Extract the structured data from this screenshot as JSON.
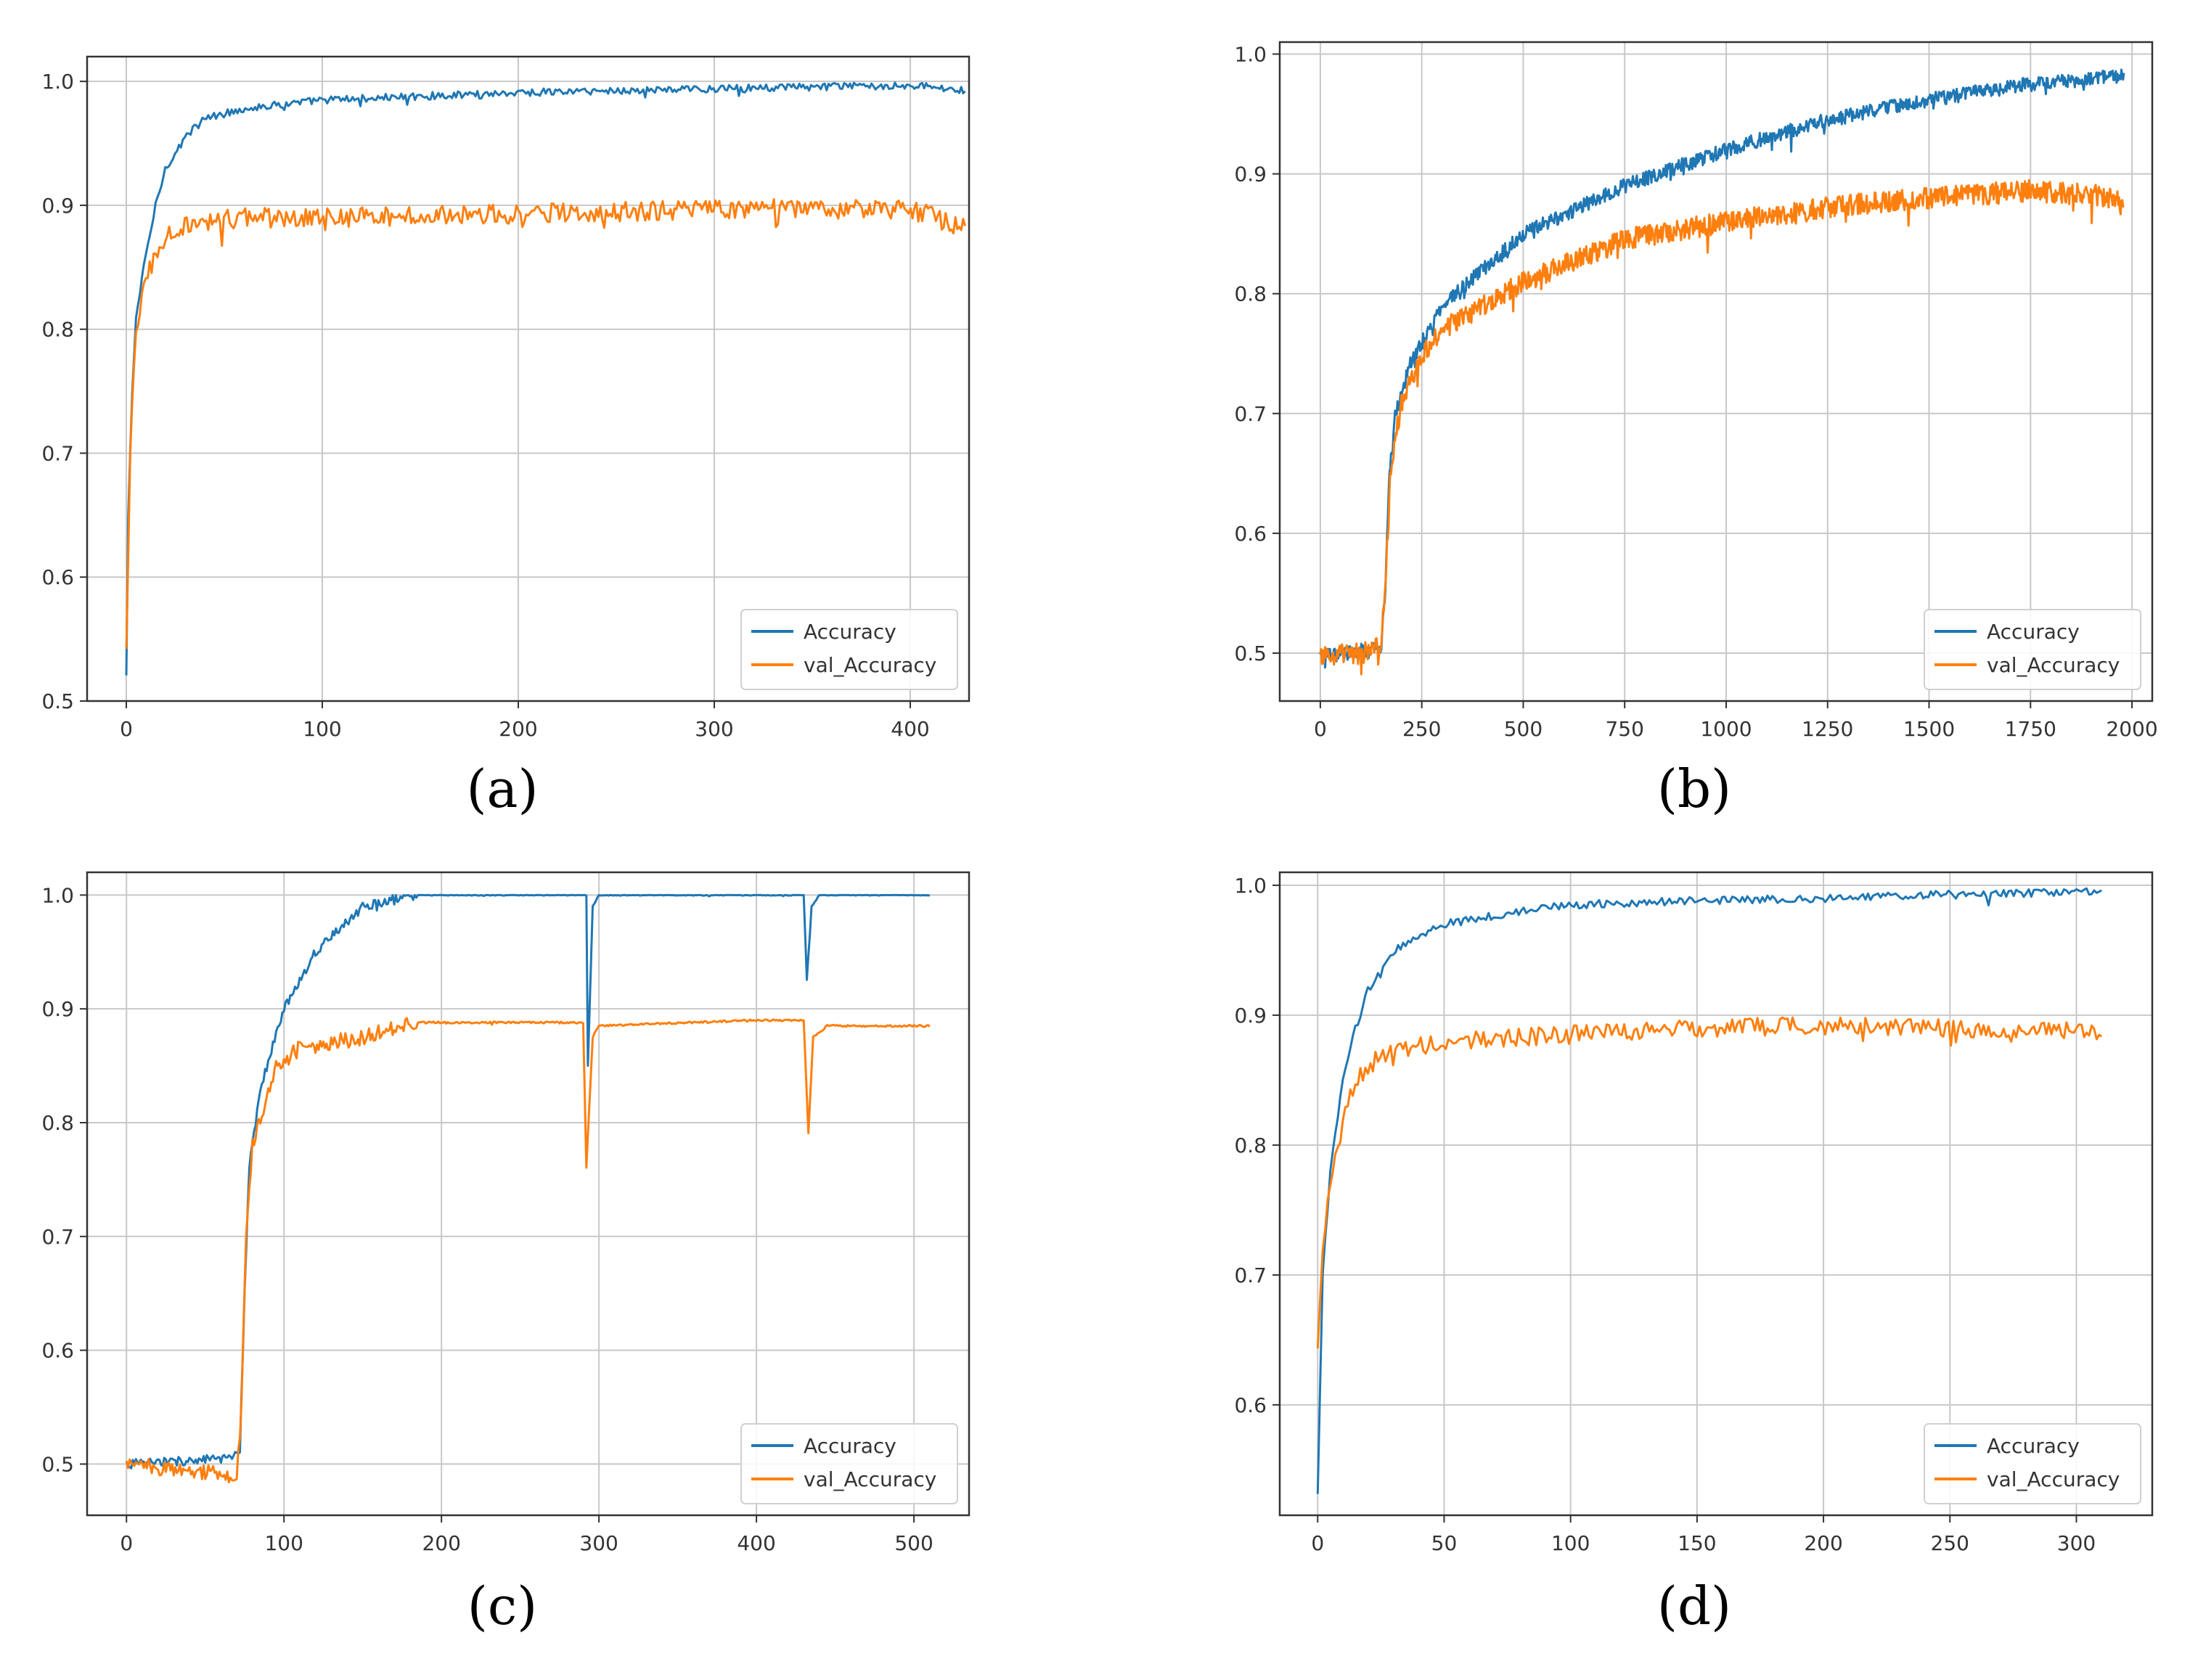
{
  "colors": {
    "accuracy": "#1f77b4",
    "val_accuracy": "#ff7f0e",
    "grid": "#c8c8c8",
    "axis": "#333333"
  },
  "chart_data": [
    {
      "id": "a",
      "caption": "(a)",
      "type": "line",
      "xlim": [
        -20,
        430
      ],
      "ylim": [
        0.5,
        1.02
      ],
      "xticks": [
        0,
        100,
        200,
        300,
        400
      ],
      "xtick_labels": [
        "0",
        "100",
        "200",
        "300",
        "400"
      ],
      "yticks": [
        0.5,
        0.6,
        0.7,
        0.8,
        0.9,
        1.0
      ],
      "ytick_labels": [
        "0.5",
        "0.6",
        "0.7",
        "0.8",
        "0.9",
        "1.0"
      ],
      "grid": true,
      "legend": "lower-right",
      "n_points": 430,
      "series": [
        {
          "name": "Accuracy",
          "color": "#1f77b4",
          "points": [
            [
              0,
              0.52
            ],
            [
              1,
              0.65
            ],
            [
              3,
              0.75
            ],
            [
              5,
              0.81
            ],
            [
              10,
              0.86
            ],
            [
              15,
              0.9
            ],
            [
              20,
              0.93
            ],
            [
              30,
              0.955
            ],
            [
              40,
              0.97
            ],
            [
              60,
              0.978
            ],
            [
              100,
              0.985
            ],
            [
              150,
              0.988
            ],
            [
              200,
              0.991
            ],
            [
              300,
              0.994
            ],
            [
              400,
              0.997
            ],
            [
              428,
              0.993
            ]
          ],
          "noise": 0.003
        },
        {
          "name": "val_Accuracy",
          "color": "#ff7f0e",
          "points": [
            [
              0,
              0.54
            ],
            [
              2,
              0.7
            ],
            [
              5,
              0.8
            ],
            [
              10,
              0.84
            ],
            [
              15,
              0.86
            ],
            [
              20,
              0.875
            ],
            [
              30,
              0.885
            ],
            [
              60,
              0.89
            ],
            [
              100,
              0.89
            ],
            [
              200,
              0.893
            ],
            [
              300,
              0.897
            ],
            [
              400,
              0.897
            ],
            [
              428,
              0.882
            ]
          ],
          "noise": 0.008
        }
      ]
    },
    {
      "id": "b",
      "caption": "(b)",
      "type": "line",
      "xlim": [
        -100,
        2050
      ],
      "ylim": [
        0.46,
        1.01
      ],
      "xticks": [
        0,
        250,
        500,
        750,
        1000,
        1250,
        1500,
        1750,
        2000
      ],
      "xtick_labels": [
        "0",
        "250",
        "500",
        "750",
        "1000",
        "1250",
        "1500",
        "1750",
        "2000"
      ],
      "yticks": [
        0.5,
        0.6,
        0.7,
        0.8,
        0.9,
        1.0
      ],
      "ytick_labels": [
        "0.5",
        "0.6",
        "0.7",
        "0.8",
        "0.9",
        "1.0"
      ],
      "grid": true,
      "legend": "lower-right",
      "n_points": 1000,
      "series": [
        {
          "name": "Accuracy",
          "color": "#1f77b4",
          "points": [
            [
              0,
              0.497
            ],
            [
              100,
              0.502
            ],
            [
              150,
              0.505
            ],
            [
              160,
              0.55
            ],
            [
              170,
              0.65
            ],
            [
              185,
              0.7
            ],
            [
              220,
              0.74
            ],
            [
              300,
              0.79
            ],
            [
              400,
              0.82
            ],
            [
              500,
              0.85
            ],
            [
              750,
              0.89
            ],
            [
              1000,
              0.92
            ],
            [
              1250,
              0.945
            ],
            [
              1500,
              0.962
            ],
            [
              1750,
              0.975
            ],
            [
              1980,
              0.982
            ]
          ],
          "noise": 0.006
        },
        {
          "name": "val_Accuracy",
          "color": "#ff7f0e",
          "points": [
            [
              0,
              0.497
            ],
            [
              100,
              0.5
            ],
            [
              150,
              0.505
            ],
            [
              160,
              0.56
            ],
            [
              175,
              0.66
            ],
            [
              200,
              0.71
            ],
            [
              250,
              0.75
            ],
            [
              300,
              0.77
            ],
            [
              400,
              0.79
            ],
            [
              500,
              0.81
            ],
            [
              750,
              0.845
            ],
            [
              1000,
              0.86
            ],
            [
              1250,
              0.872
            ],
            [
              1500,
              0.88
            ],
            [
              1750,
              0.886
            ],
            [
              1980,
              0.88
            ]
          ],
          "noise": 0.009
        }
      ]
    },
    {
      "id": "c",
      "caption": "(c)",
      "type": "line",
      "xlim": [
        -25,
        535
      ],
      "ylim": [
        0.455,
        1.02
      ],
      "xticks": [
        0,
        100,
        200,
        300,
        400,
        500
      ],
      "xtick_labels": [
        "0",
        "100",
        "200",
        "300",
        "400",
        "500"
      ],
      "yticks": [
        0.5,
        0.6,
        0.7,
        0.8,
        0.9,
        1.0
      ],
      "ytick_labels": [
        "0.5",
        "0.6",
        "0.7",
        "0.8",
        "0.9",
        "1.0"
      ],
      "grid": true,
      "legend": "lower-right",
      "n_points": 510,
      "series": [
        {
          "name": "Accuracy",
          "color": "#1f77b4",
          "points": [
            [
              0,
              0.5
            ],
            [
              65,
              0.505
            ],
            [
              72,
              0.51
            ],
            [
              75,
              0.65
            ],
            [
              78,
              0.76
            ],
            [
              85,
              0.83
            ],
            [
              100,
              0.9
            ],
            [
              120,
              0.95
            ],
            [
              150,
              0.99
            ],
            [
              180,
              1.0
            ],
            [
              292,
              1.0
            ],
            [
              293,
              0.85
            ],
            [
              296,
              0.99
            ],
            [
              300,
              1.0
            ],
            [
              430,
              1.0
            ],
            [
              432,
              0.925
            ],
            [
              435,
              0.99
            ],
            [
              440,
              1.0
            ],
            [
              510,
              1.0
            ]
          ],
          "noise": 0.004,
          "noise_until": 185
        },
        {
          "name": "val_Accuracy",
          "color": "#ff7f0e",
          "points": [
            [
              0,
              0.5
            ],
            [
              70,
              0.49
            ],
            [
              73,
              0.55
            ],
            [
              76,
              0.7
            ],
            [
              80,
              0.78
            ],
            [
              95,
              0.85
            ],
            [
              110,
              0.865
            ],
            [
              150,
              0.875
            ],
            [
              180,
              0.888
            ],
            [
              290,
              0.888
            ],
            [
              292,
              0.76
            ],
            [
              296,
              0.875
            ],
            [
              300,
              0.885
            ],
            [
              400,
              0.89
            ],
            [
              430,
              0.89
            ],
            [
              433,
              0.79
            ],
            [
              436,
              0.875
            ],
            [
              445,
              0.885
            ],
            [
              510,
              0.885
            ]
          ],
          "noise": 0.007,
          "noise_until": 185
        }
      ]
    },
    {
      "id": "d",
      "caption": "(d)",
      "type": "line",
      "xlim": [
        -15,
        330
      ],
      "ylim": [
        0.515,
        1.01
      ],
      "xticks": [
        0,
        50,
        100,
        150,
        200,
        250,
        300
      ],
      "xtick_labels": [
        "0",
        "50",
        "100",
        "150",
        "200",
        "250",
        "300"
      ],
      "yticks": [
        0.6,
        0.7,
        0.8,
        0.9,
        1.0
      ],
      "ytick_labels": [
        "0.6",
        "0.7",
        "0.8",
        "0.9",
        "1.0"
      ],
      "grid": true,
      "legend": "lower-right",
      "n_points": 312,
      "series": [
        {
          "name": "Accuracy",
          "color": "#1f77b4",
          "points": [
            [
              0,
              0.53
            ],
            [
              2,
              0.7
            ],
            [
              5,
              0.78
            ],
            [
              10,
              0.85
            ],
            [
              15,
              0.89
            ],
            [
              20,
              0.92
            ],
            [
              30,
              0.95
            ],
            [
              50,
              0.97
            ],
            [
              80,
              0.98
            ],
            [
              100,
              0.985
            ],
            [
              150,
              0.988
            ],
            [
              200,
              0.99
            ],
            [
              250,
              0.993
            ],
            [
              310,
              0.995
            ]
          ],
          "noise": 0.003
        },
        {
          "name": "val_Accuracy",
          "color": "#ff7f0e",
          "points": [
            [
              0,
              0.64
            ],
            [
              2,
              0.72
            ],
            [
              5,
              0.77
            ],
            [
              10,
              0.82
            ],
            [
              15,
              0.85
            ],
            [
              25,
              0.87
            ],
            [
              50,
              0.88
            ],
            [
              100,
              0.885
            ],
            [
              150,
              0.89
            ],
            [
              200,
              0.892
            ],
            [
              250,
              0.89
            ],
            [
              310,
              0.888
            ]
          ],
          "noise": 0.007
        }
      ]
    }
  ]
}
